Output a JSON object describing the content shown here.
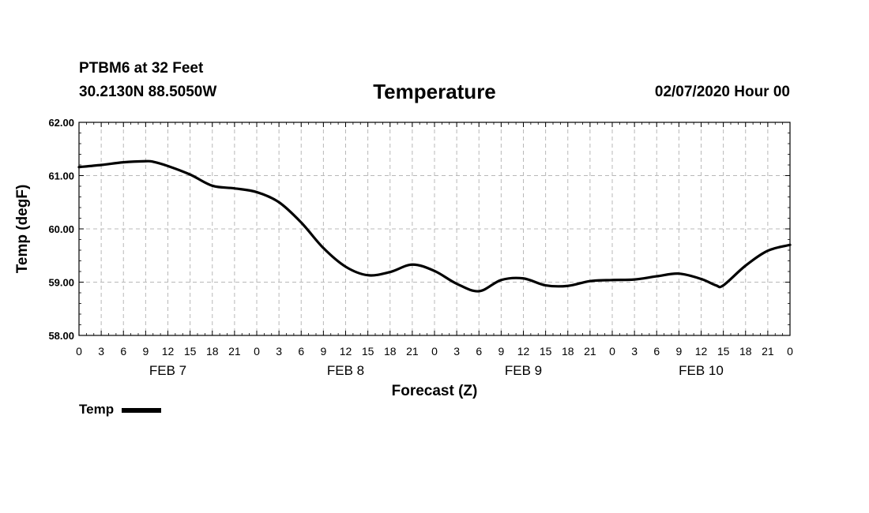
{
  "header": {
    "station": "PTBM6 at 32 Feet",
    "coords": "30.2130N 88.5050W",
    "title": "Temperature",
    "run_time": "02/07/2020 Hour 00"
  },
  "legend": {
    "label": "Temp"
  },
  "chart_data": {
    "type": "line",
    "title": "Temperature",
    "xlabel": "Forecast (Z)",
    "ylabel": "Temp (degF)",
    "ylim": [
      58.0,
      62.0
    ],
    "y_ticks": [
      "58.00",
      "59.00",
      "60.00",
      "61.00",
      "62.00"
    ],
    "x_range_hours": [
      0,
      96
    ],
    "x_tick_labels": [
      "0",
      "3",
      "6",
      "9",
      "12",
      "15",
      "18",
      "21",
      "0",
      "3",
      "6",
      "9",
      "12",
      "15",
      "18",
      "21",
      "0",
      "3",
      "6",
      "9",
      "12",
      "15",
      "18",
      "21",
      "0",
      "3",
      "6",
      "9",
      "12",
      "15",
      "18",
      "21",
      "0"
    ],
    "day_labels": [
      {
        "label": "FEB 7",
        "hour": 12
      },
      {
        "label": "FEB 8",
        "hour": 36
      },
      {
        "label": "FEB 9",
        "hour": 60
      },
      {
        "label": "FEB 10",
        "hour": 84
      }
    ],
    "grid": true,
    "legend": "bottom-left",
    "series": [
      {
        "name": "Temp",
        "x": [
          0,
          3,
          6,
          9,
          10,
          12,
          15,
          18,
          21,
          24,
          27,
          30,
          33,
          36,
          39,
          42,
          45,
          48,
          51,
          54,
          57,
          60,
          63,
          66,
          69,
          72,
          75,
          78,
          81,
          84,
          86,
          87,
          90,
          93,
          96
        ],
        "values": [
          61.16,
          61.2,
          61.25,
          61.27,
          61.26,
          61.18,
          61.02,
          60.81,
          60.76,
          60.69,
          60.5,
          60.12,
          59.64,
          59.29,
          59.13,
          59.19,
          59.33,
          59.21,
          58.97,
          58.83,
          59.04,
          59.07,
          58.94,
          58.93,
          59.02,
          59.04,
          59.05,
          59.11,
          59.16,
          59.06,
          58.94,
          58.94,
          59.31,
          59.59,
          59.7
        ]
      }
    ]
  }
}
